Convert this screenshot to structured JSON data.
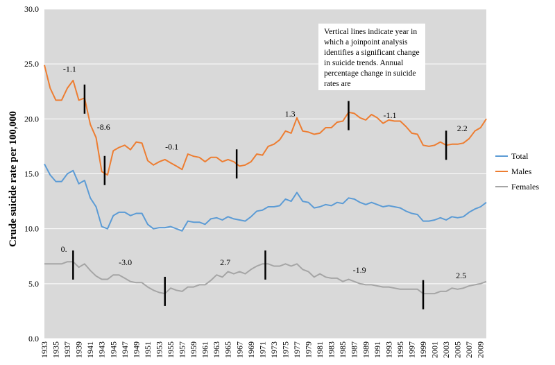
{
  "chart_data": {
    "type": "line",
    "title": "",
    "xlabel": "",
    "ylabel": "Crude suicide rate per 100,000",
    "ylim": [
      0,
      30
    ],
    "yticks": [
      "0.0",
      "5.0",
      "10.0",
      "15.0",
      "20.0",
      "25.0",
      "30.0"
    ],
    "xlim": [
      1933,
      2010
    ],
    "xticks": [
      "1933",
      "1935",
      "1937",
      "1939",
      "1941",
      "1943",
      "1945",
      "1947",
      "1949",
      "1951",
      "1953",
      "1955",
      "1957",
      "1959",
      "1961",
      "1963",
      "1965",
      "1967",
      "1969",
      "1971",
      "1973",
      "1975",
      "1977",
      "1979",
      "1981",
      "1983",
      "1985",
      "1987",
      "1989",
      "1991",
      "1993",
      "1995",
      "1997",
      "1999",
      "2001",
      "2003",
      "2005",
      "2007",
      "2009"
    ],
    "grid": true,
    "legend_placement": "right",
    "note": "Vertical lines indicate year in which a joinpoint analysis identifies a significant change in suicide trends. Annual percentage change in suicide rates are",
    "x": [
      1933,
      1934,
      1935,
      1936,
      1937,
      1938,
      1939,
      1940,
      1941,
      1942,
      1943,
      1944,
      1945,
      1946,
      1947,
      1948,
      1949,
      1950,
      1951,
      1952,
      1953,
      1954,
      1955,
      1956,
      1957,
      1958,
      1959,
      1960,
      1961,
      1962,
      1963,
      1964,
      1965,
      1966,
      1967,
      1968,
      1969,
      1970,
      1971,
      1972,
      1973,
      1974,
      1975,
      1976,
      1977,
      1978,
      1979,
      1980,
      1981,
      1982,
      1983,
      1984,
      1985,
      1986,
      1987,
      1988,
      1989,
      1990,
      1991,
      1992,
      1993,
      1994,
      1995,
      1996,
      1997,
      1998,
      1999,
      2000,
      2001,
      2002,
      2003,
      2004,
      2005,
      2006,
      2007,
      2008,
      2009,
      2010
    ],
    "series": [
      {
        "name": "Total",
        "color": "#5b9bd5",
        "values": [
          15.9,
          14.9,
          14.3,
          14.3,
          15.0,
          15.3,
          14.1,
          14.4,
          12.8,
          12.0,
          10.2,
          10.0,
          11.2,
          11.5,
          11.5,
          11.2,
          11.4,
          11.4,
          10.4,
          10.0,
          10.1,
          10.1,
          10.2,
          10.0,
          9.8,
          10.7,
          10.6,
          10.6,
          10.4,
          10.9,
          11.0,
          10.8,
          11.1,
          10.9,
          10.8,
          10.7,
          11.1,
          11.6,
          11.7,
          12.0,
          12.0,
          12.1,
          12.7,
          12.5,
          13.3,
          12.5,
          12.4,
          11.9,
          12.0,
          12.2,
          12.1,
          12.4,
          12.3,
          12.8,
          12.7,
          12.4,
          12.2,
          12.4,
          12.2,
          12.0,
          12.1,
          12.0,
          11.9,
          11.6,
          11.4,
          11.3,
          10.7,
          10.7,
          10.8,
          11.0,
          10.8,
          11.1,
          11.0,
          11.1,
          11.5,
          11.8,
          12.0,
          12.4
        ]
      },
      {
        "name": "Males",
        "color": "#ed7d31",
        "values": [
          24.9,
          22.8,
          21.7,
          21.7,
          22.8,
          23.5,
          21.7,
          21.9,
          19.5,
          18.3,
          15.2,
          14.9,
          17.1,
          17.4,
          17.6,
          17.2,
          17.9,
          17.8,
          16.2,
          15.8,
          16.1,
          16.3,
          16.0,
          15.7,
          15.4,
          16.8,
          16.6,
          16.5,
          16.1,
          16.5,
          16.5,
          16.1,
          16.3,
          16.1,
          15.7,
          15.8,
          16.1,
          16.8,
          16.7,
          17.5,
          17.7,
          18.1,
          18.9,
          18.7,
          20.1,
          18.9,
          18.8,
          18.6,
          18.7,
          19.2,
          19.2,
          19.7,
          19.8,
          20.6,
          20.5,
          20.1,
          19.9,
          20.4,
          20.1,
          19.6,
          19.9,
          19.8,
          19.8,
          19.3,
          18.7,
          18.6,
          17.6,
          17.5,
          17.6,
          17.9,
          17.6,
          17.7,
          17.7,
          17.8,
          18.2,
          18.9,
          19.2,
          20.0
        ]
      },
      {
        "name": "Females",
        "color": "#a5a5a5",
        "values": [
          6.8,
          6.8,
          6.8,
          6.8,
          7.0,
          7.0,
          6.5,
          6.8,
          6.2,
          5.7,
          5.4,
          5.4,
          5.8,
          5.8,
          5.5,
          5.2,
          5.1,
          5.1,
          4.7,
          4.4,
          4.2,
          4.1,
          4.6,
          4.4,
          4.3,
          4.7,
          4.7,
          4.9,
          4.9,
          5.3,
          5.8,
          5.6,
          6.1,
          5.9,
          6.1,
          5.9,
          6.3,
          6.6,
          6.8,
          6.8,
          6.6,
          6.6,
          6.8,
          6.6,
          6.8,
          6.3,
          6.1,
          5.6,
          5.9,
          5.6,
          5.5,
          5.5,
          5.2,
          5.4,
          5.2,
          5.0,
          4.9,
          4.9,
          4.8,
          4.7,
          4.7,
          4.6,
          4.5,
          4.5,
          4.5,
          4.5,
          4.1,
          4.1,
          4.1,
          4.3,
          4.3,
          4.6,
          4.5,
          4.6,
          4.8,
          4.9,
          5.0,
          5.2
        ]
      }
    ],
    "joinpoints": [
      {
        "x": 1940,
        "y": 21.8
      },
      {
        "x": 1943.5,
        "y": 15.3
      },
      {
        "x": 1966.5,
        "y": 15.9
      },
      {
        "x": 1986,
        "y": 20.3
      },
      {
        "x": 2003,
        "y": 17.6
      },
      {
        "x": 1938,
        "y": 6.7
      },
      {
        "x": 1954,
        "y": 4.3
      },
      {
        "x": 1971.5,
        "y": 6.7
      },
      {
        "x": 1999,
        "y": 4.0
      }
    ],
    "annotations": [
      {
        "text": "-1.1",
        "x": 1937.4,
        "y": 24.3
      },
      {
        "text": "-8.6",
        "x": 1943.3,
        "y": 19.0
      },
      {
        "text": "-0.1",
        "x": 1955.2,
        "y": 17.2
      },
      {
        "text": "1.3",
        "x": 1975.8,
        "y": 20.2
      },
      {
        "text": "-1.1",
        "x": 1993.2,
        "y": 20.1
      },
      {
        "text": "2.2",
        "x": 2005.8,
        "y": 18.9
      },
      {
        "text": "0.",
        "x": 1936.4,
        "y": 7.9
      },
      {
        "text": "-3.0",
        "x": 1947.1,
        "y": 6.7
      },
      {
        "text": "2.7",
        "x": 1964.5,
        "y": 6.7
      },
      {
        "text": "-1.9",
        "x": 1987.9,
        "y": 6.0
      },
      {
        "text": "2.5",
        "x": 2005.6,
        "y": 5.5
      }
    ]
  },
  "legend": {
    "items": [
      {
        "label": "Total",
        "color": "#5b9bd5"
      },
      {
        "label": "Males",
        "color": "#ed7d31"
      },
      {
        "label": "Females",
        "color": "#a5a5a5"
      }
    ]
  },
  "note_text": "Vertical lines indicate year in which a joinpoint analysis identifies a significant change in suicide trends. Annual percentage change in suicide rates are"
}
